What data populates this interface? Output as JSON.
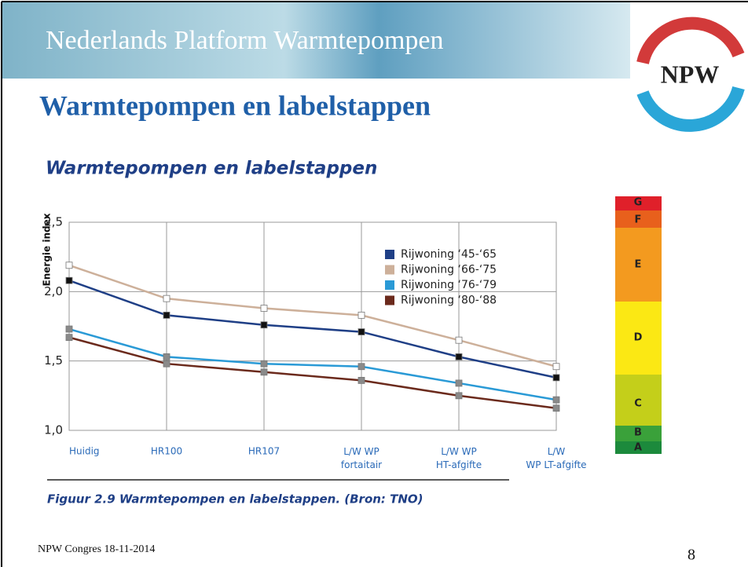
{
  "header": {
    "title": "Nederlands Platform Warmtepompen",
    "subtitle": "Warmtepompen en labelstappen"
  },
  "logo": {
    "text": "NPW"
  },
  "chart_data": {
    "type": "line",
    "title": "Warmtepompen en labelstappen",
    "y_label": "Energie index",
    "categories": [
      "Huidig",
      "HR100",
      "HR107",
      "L/W WP\nfortaitair",
      "L/W WP\nHT-afgifte",
      "L/W\nWP LT-afgifte"
    ],
    "series": [
      {
        "name": "Rijwoning ‘45-‘65",
        "color": "#1f3f86",
        "marker_color": "#111111",
        "values": [
          2.08,
          1.83,
          1.76,
          1.71,
          1.53,
          1.38
        ]
      },
      {
        "name": "Rijwoning ‘66-‘75",
        "color": "#cdb09a",
        "marker_color": "#ffffff",
        "values": [
          2.19,
          1.95,
          1.88,
          1.83,
          1.65,
          1.46
        ]
      },
      {
        "name": "Rijwoning ‘76-‘79",
        "color": "#2a9ad6",
        "marker_color": "#8a8a8a",
        "values": [
          1.73,
          1.53,
          1.48,
          1.46,
          1.34,
          1.22
        ]
      },
      {
        "name": "Rijwoning ‘80-‘88",
        "color": "#6b2a1c",
        "marker_color": "#8a8a8a",
        "values": [
          1.67,
          1.48,
          1.42,
          1.36,
          1.25,
          1.16
        ]
      }
    ],
    "ylim": [
      1.0,
      2.5
    ],
    "yticks": [
      {
        "value": 1.0,
        "label": "1,0"
      },
      {
        "value": 1.5,
        "label": "1,5"
      },
      {
        "value": 2.0,
        "label": "2,0"
      },
      {
        "value": 2.5,
        "label": "2,5"
      }
    ],
    "grid": true,
    "legend": "upper right"
  },
  "label_scale": [
    "G",
    "F",
    "E",
    "D",
    "C",
    "B",
    "A"
  ],
  "caption": "Figuur 2.9 Warmtepompen en labelstappen. (Bron: TNO)",
  "footer": {
    "left": "NPW Congres 18-11-2014",
    "page": "8"
  }
}
